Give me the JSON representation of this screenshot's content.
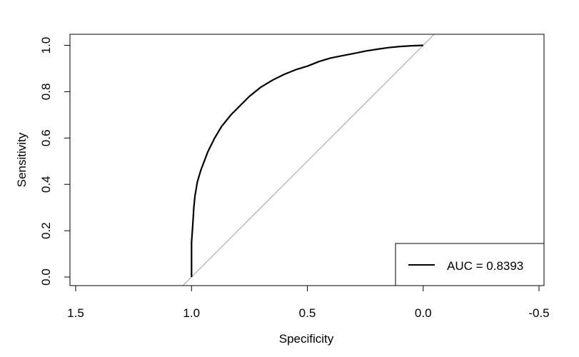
{
  "chart_data": {
    "type": "line",
    "xlabel": "Specificity",
    "ylabel": "Sensitivity",
    "xlim": [
      1.5,
      -0.5
    ],
    "ylim": [
      0.0,
      1.0
    ],
    "x_reversed": true,
    "grid": false,
    "x_ticks": [
      "1.5",
      "1.0",
      "0.5",
      "0.0",
      "-0.5"
    ],
    "y_ticks": [
      "0.0",
      "0.2",
      "0.4",
      "0.6",
      "0.8",
      "1.0"
    ],
    "series": [
      {
        "name": "AUC = 0.8393",
        "color": "#000000",
        "x": [
          1.0,
          1.0,
          0.995,
          0.99,
          0.985,
          0.975,
          0.96,
          0.945,
          0.93,
          0.9,
          0.87,
          0.83,
          0.79,
          0.75,
          0.7,
          0.65,
          0.6,
          0.55,
          0.5,
          0.45,
          0.4,
          0.35,
          0.3,
          0.25,
          0.2,
          0.15,
          0.1,
          0.05,
          0.0
        ],
        "y": [
          0.0,
          0.15,
          0.22,
          0.3,
          0.35,
          0.41,
          0.46,
          0.5,
          0.54,
          0.6,
          0.65,
          0.7,
          0.74,
          0.78,
          0.82,
          0.85,
          0.875,
          0.895,
          0.91,
          0.93,
          0.945,
          0.955,
          0.965,
          0.975,
          0.983,
          0.99,
          0.995,
          0.998,
          1.0
        ]
      },
      {
        "name": "",
        "color": "#a0a0a0",
        "x": [
          1.0,
          0.0
        ],
        "y": [
          0.0,
          1.0
        ],
        "reference": true
      }
    ],
    "legend": {
      "position": "bottom-right",
      "label": "AUC = 0.8393"
    }
  }
}
